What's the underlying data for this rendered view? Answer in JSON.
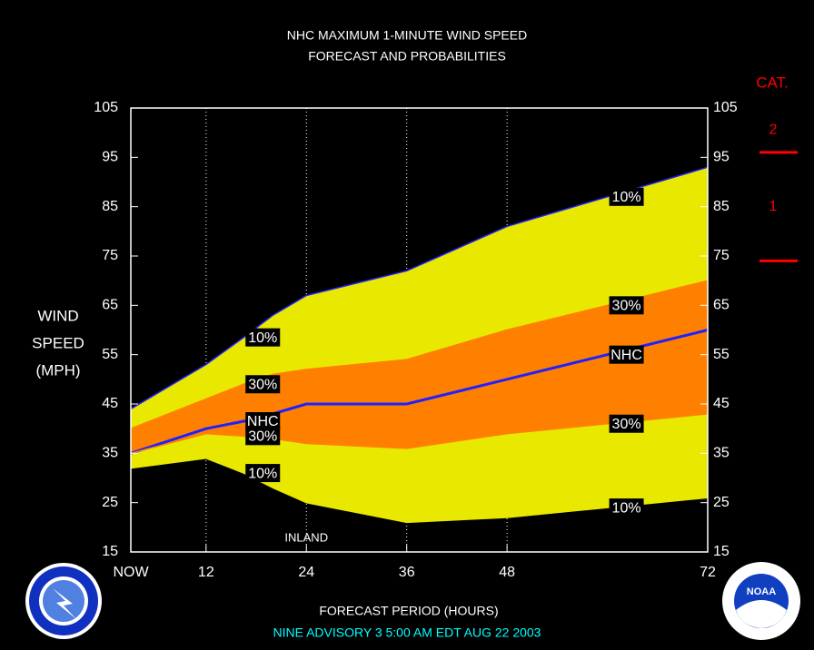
{
  "chart_data": {
    "type": "band",
    "title": [
      "NHC MAXIMUM 1-MINUTE WIND SPEED",
      "FORECAST AND PROBABILITIES"
    ],
    "y_label": [
      "WIND",
      "SPEED",
      "(MPH)"
    ],
    "x_label": "FORECAST PERIOD (HOURS)",
    "footer": "NINE   ADVISORY  3 5:00 AM EDT AUG 22 2003",
    "annotation": {
      "text": "INLAND",
      "x": 24
    },
    "x": [
      3,
      12,
      16.5,
      20,
      24,
      36,
      48,
      60,
      72
    ],
    "xlim": [
      3,
      72
    ],
    "xticks": [
      {
        "value": 3,
        "label": "NOW"
      },
      12,
      24,
      36,
      48,
      72
    ],
    "ylim": [
      15,
      105
    ],
    "yticks": [
      15,
      25,
      35,
      45,
      55,
      65,
      75,
      85,
      95,
      105
    ],
    "grid": true,
    "series": [
      {
        "name": "10%",
        "color": "#e8e800",
        "values": [
          44,
          53,
          58.5,
          63,
          67,
          72,
          81,
          87,
          93
        ]
      },
      {
        "name": "30%",
        "color": "#ff8000",
        "values": [
          40,
          46,
          49,
          51,
          52,
          54,
          60,
          65,
          70
        ]
      },
      {
        "name": "NHC",
        "color": "#2020ff",
        "values": [
          35,
          40,
          41.5,
          43,
          45,
          45,
          50,
          55,
          60
        ]
      },
      {
        "name": "30%",
        "color": "#ff8000",
        "values": [
          35,
          39,
          38.5,
          38,
          37,
          36,
          39,
          41,
          43
        ]
      },
      {
        "name": "10%",
        "color": "#e8e800",
        "values": [
          32,
          34,
          31,
          28,
          25,
          21,
          22,
          24,
          26
        ]
      }
    ],
    "category_scale": {
      "title": "CAT.",
      "color": "#ff0000",
      "labels": [
        "2",
        "1"
      ],
      "thresholds": [
        96,
        74
      ]
    },
    "logos": {
      "noaa": "NOAA"
    }
  }
}
